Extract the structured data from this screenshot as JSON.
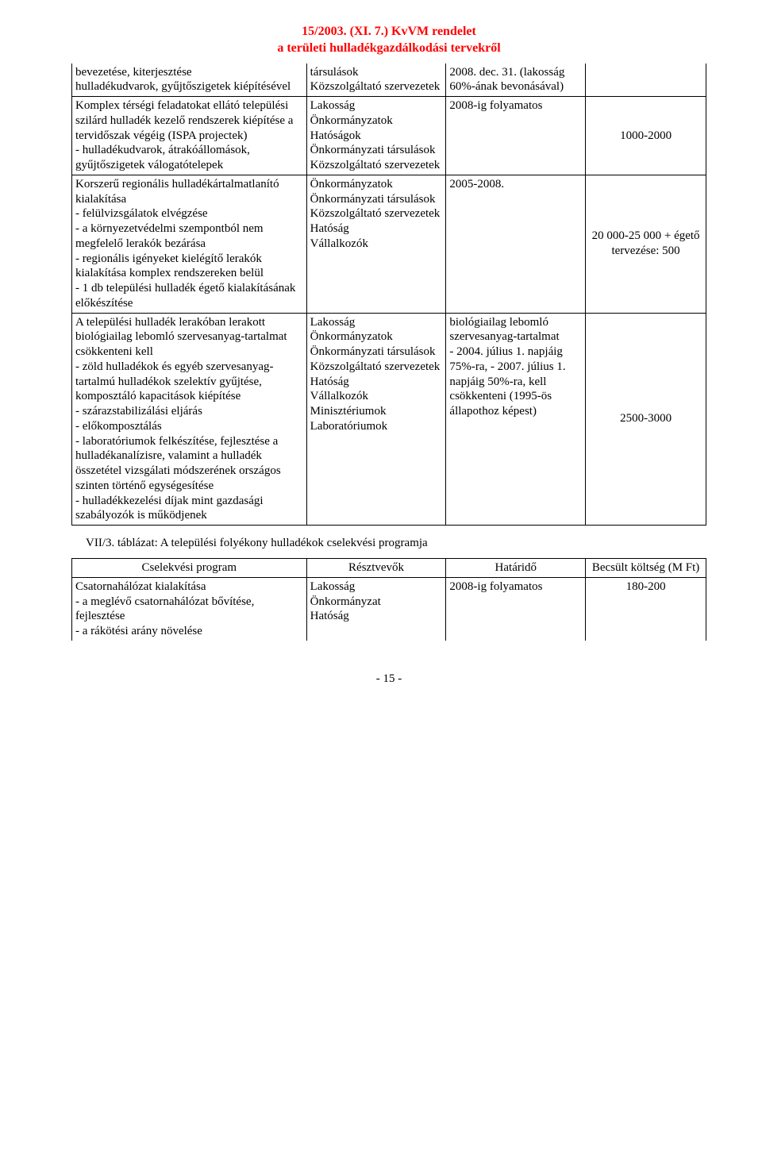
{
  "header": {
    "title_line1": "15/2003. (XI. 7.) KvVM rendelet",
    "title_line2": "a területi hulladékgazdálkodási tervekről"
  },
  "table1": {
    "rows": [
      {
        "c1": "bevezetése, kiterjesztése\nhulladékudvarok, gyűjtőszigetek kiépítésével",
        "c2": "társulások\nKözszolgáltató szervezetek",
        "c3": "2008. dec. 31. (lakosság 60%-ának bevonásával)",
        "c4": ""
      },
      {
        "c1": "Komplex térségi feladatokat ellátó települési szilárd hulladék kezelő rendszerek kiépítése a tervidőszak végéig (ISPA projectek)\n- hulladékudvarok, átrakóállomások, gyűjtőszigetek válogatótelepek",
        "c2": "Lakosság\nÖnkormányzatok\nHatóságok\nÖnkormányzati társulások\nKözszolgáltató szervezetek",
        "c3": "2008-ig folyamatos",
        "c4": "1000-2000"
      },
      {
        "c1": "Korszerű regionális hulladékártalmatlanító kialakítása\n- felülvizsgálatok elvégzése\n- a környezetvédelmi szempontból nem megfelelő lerakók bezárása\n- regionális igényeket kielégítő lerakók kialakítása komplex rendszereken belül\n- 1 db települési hulladék égető kialakításának előkészítése",
        "c2": "Önkormányzatok\nÖnkormányzati társulások\nKözszolgáltató szervezetek\nHatóság\nVállalkozók",
        "c3": "2005-2008.",
        "c4": "20 000-25 000 + égető tervezése: 500"
      },
      {
        "c1": "A települési hulladék lerakóban lerakott biológiailag lebomló szervesanyag-tartalmat csökkenteni kell\n- zöld hulladékok és egyéb szervesanyag-\ntartalmú hulladékok szelektív gyűjtése, komposztáló kapacitások kiépítése\n- szárazstabilizálási eljárás\n- előkomposztálás\n- laboratóriumok felkészítése, fejlesztése a hulladékanalízisre, valamint a hulladék összetétel vizsgálati módszerének országos szinten történő egységesítése\n- hulladékkezelési díjak mint gazdasági szabályozók is működjenek",
        "c2": "Lakosság\nÖnkormányzatok\nÖnkormányzati társulások\nKözszolgáltató szervezetek\nHatóság\nVállalkozók\nMinisztériumok\nLaboratóriumok",
        "c3": "biológiailag lebomló szervesanyag-tartalmat\n- 2004. július 1. napjáig 75%-ra, - 2007. július 1. napjáig 50%-ra, kell csökkenteni (1995-ös állapothoz képest)",
        "c4": "2500-3000"
      }
    ]
  },
  "section": {
    "title": "VII/3. táblázat: A települési folyékony hulladékok cselekvési programja"
  },
  "table2": {
    "head": {
      "c1": "Cselekvési program",
      "c2": "Résztvevők",
      "c3": "Határidő",
      "c4": "Becsült költség (M Ft)"
    },
    "rows": [
      {
        "c1": "Csatornahálózat kialakítása\n- a meglévő csatornahálózat bővítése, fejlesztése\n- a rákötési arány növelése",
        "c2": "Lakosság\nÖnkormányzat\nHatóság",
        "c3": "2008-ig folyamatos",
        "c4": "180-200"
      }
    ]
  },
  "footer": {
    "pagenum": "- 15 -"
  }
}
